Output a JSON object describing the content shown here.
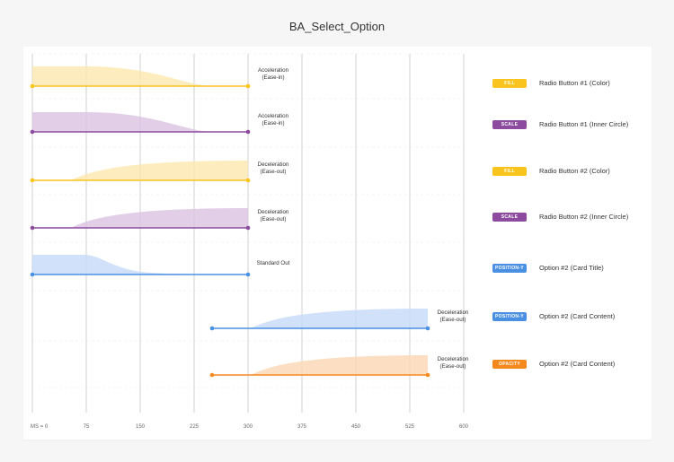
{
  "title": "BA_Select_Option",
  "colors": {
    "fill": "#f8c41d",
    "fill_light": "#fde9b3",
    "scale": "#8c4b9e",
    "scale_light": "#ddc6e3",
    "position": "#4a90e2",
    "position_light": "#c8dcf8",
    "opacity": "#f5891e",
    "opacity_light": "#fbd9b8"
  },
  "axis": {
    "ticks": [
      0,
      75,
      150,
      225,
      300,
      375,
      450,
      525,
      600
    ],
    "tick_labels": [
      "MS = 0",
      "75",
      "150",
      "225",
      "300",
      "375",
      "450",
      "525",
      "600"
    ]
  },
  "tracks": [
    {
      "start_ms": 0,
      "end_ms": 300,
      "curve": "ease-in",
      "color_key": "fill",
      "curve_label_1": "Acceleration",
      "curve_label_2": "(Ease-in)",
      "badge": "FILL",
      "property": "Radio Button #1 (Color)"
    },
    {
      "start_ms": 0,
      "end_ms": 300,
      "curve": "ease-in",
      "color_key": "scale",
      "curve_label_1": "Acceleration",
      "curve_label_2": "(Ease-in)",
      "badge": "SCALE",
      "property": "Radio Button #1 (Inner Circle)"
    },
    {
      "start_ms": 0,
      "end_ms": 300,
      "curve": "ease-out",
      "color_key": "fill",
      "curve_label_1": "Deceleration",
      "curve_label_2": "(Ease-out)",
      "badge": "FILL",
      "property": "Radio Button #2 (Color)"
    },
    {
      "start_ms": 0,
      "end_ms": 300,
      "curve": "ease-out",
      "color_key": "scale",
      "curve_label_1": "Deceleration",
      "curve_label_2": "(Ease-out)",
      "badge": "SCALE",
      "property": "Radio Button #2 (Inner Circle)"
    },
    {
      "start_ms": 0,
      "end_ms": 300,
      "curve": "standard-out",
      "color_key": "position",
      "curve_label_1": "Standard Out",
      "curve_label_2": "",
      "badge": "POSITION-Y",
      "property": "Option #2 (Card Title)"
    },
    {
      "start_ms": 250,
      "end_ms": 550,
      "curve": "ease-out",
      "color_key": "position",
      "curve_label_1": "Deceleration",
      "curve_label_2": "(Ease-out)",
      "badge": "POSITION-Y",
      "property": "Option #2 (Card Content)"
    },
    {
      "start_ms": 250,
      "end_ms": 550,
      "curve": "ease-out",
      "color_key": "opacity",
      "curve_label_1": "Deceleration",
      "curve_label_2": "(Ease-out)",
      "badge": "OPACITY",
      "property": "Option #2 (Card Content)"
    }
  ]
}
